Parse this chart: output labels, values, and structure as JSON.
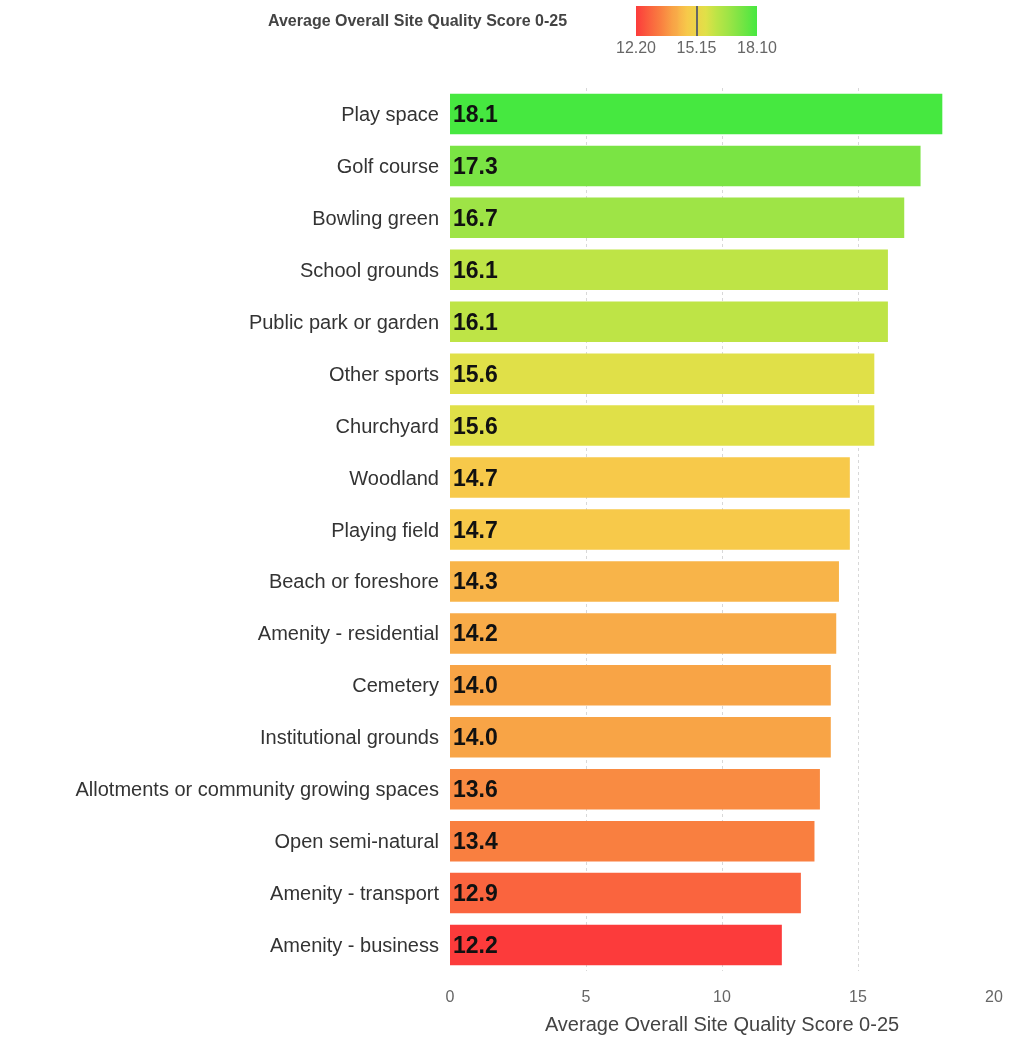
{
  "chart_data": {
    "type": "bar",
    "orientation": "horizontal",
    "categories": [
      "Play space",
      "Golf course",
      "Bowling green",
      "School grounds",
      "Public park or garden",
      "Other sports",
      "Churchyard",
      "Woodland",
      "Playing field",
      "Beach or foreshore",
      "Amenity - residential",
      "Cemetery",
      "Institutional grounds",
      "Allotments or community growing spaces",
      "Open semi-natural",
      "Amenity - transport",
      "Amenity - business"
    ],
    "values": [
      18.1,
      17.3,
      16.7,
      16.1,
      16.1,
      15.6,
      15.6,
      14.7,
      14.7,
      14.3,
      14.2,
      14.0,
      14.0,
      13.6,
      13.4,
      12.9,
      12.2
    ],
    "value_labels": [
      "18.1",
      "17.3",
      "16.7",
      "16.1",
      "16.1",
      "15.6",
      "15.6",
      "14.7",
      "14.7",
      "14.3",
      "14.2",
      "14.0",
      "14.0",
      "13.6",
      "13.4",
      "12.9",
      "12.2"
    ],
    "colors": [
      "#46e840",
      "#7ae444",
      "#9ee446",
      "#bee446",
      "#bee446",
      "#e0e048",
      "#e0e048",
      "#f7c94a",
      "#f7c94a",
      "#f8b449",
      "#f8ab48",
      "#f8a446",
      "#f8a446",
      "#f98b42",
      "#f97f40",
      "#fa643e",
      "#fc3b3b"
    ],
    "xlabel": "Average Overall Site Quality Score 0-25",
    "xlim": [
      0,
      20
    ],
    "xticks": [
      0,
      5,
      10,
      15,
      20
    ],
    "grid": "x",
    "clabel": "Average Overall Site Quality Score 0-25",
    "clim": [
      12.2,
      18.1
    ],
    "cticks": [
      {
        "value": 12.2,
        "label": "12.20"
      },
      15.15,
      {
        "value": 18.1,
        "label": "18.10"
      }
    ]
  }
}
